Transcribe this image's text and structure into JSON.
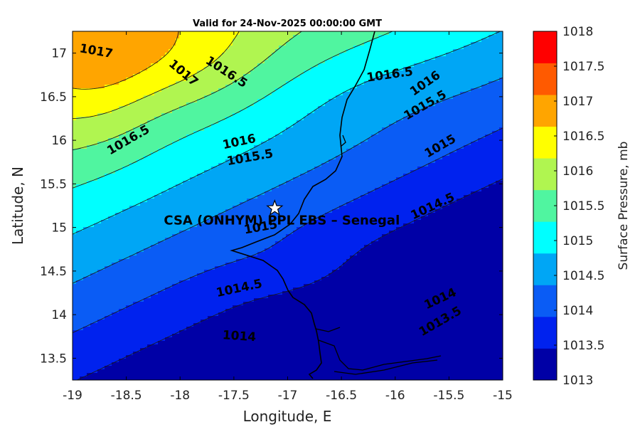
{
  "chart_data": {
    "type": "heatmap",
    "subtype": "filled contour map",
    "title": "Valid for 24-Nov-2025 00:00:00 GMT",
    "xlabel": "Longitude, E",
    "ylabel": "Latitude, N",
    "colorbar_label": "Surface Pressure, mb",
    "xlim": [
      -19,
      -15
    ],
    "ylim": [
      13.25,
      17.25
    ],
    "x_ticks": [
      -19,
      -18.5,
      -18,
      -17.5,
      -17,
      -16.5,
      -16,
      -15.5,
      -15
    ],
    "x_tick_labels": [
      "-19",
      "-18.5",
      "-18",
      "-17.5",
      "-17",
      "-16.5",
      "-16",
      "-15.5",
      "-15"
    ],
    "y_ticks": [
      13.5,
      14,
      14.5,
      15,
      15.5,
      16,
      16.5,
      17
    ],
    "y_tick_labels": [
      "13.5",
      "14",
      "14.5",
      "15",
      "15.5",
      "16",
      "16.5",
      "17"
    ],
    "levels": [
      1013,
      1013.5,
      1014,
      1014.5,
      1015,
      1015.5,
      1016,
      1016.5,
      1017,
      1017.5,
      1018
    ],
    "level_labels": [
      "1013",
      "1013.5",
      "1014",
      "1014.5",
      "1015",
      "1015.5",
      "1016",
      "1016.5",
      "1017",
      "1017.5",
      "1018"
    ],
    "colors": [
      "#0000a6",
      "#0022ee",
      "#0a5cf5",
      "#00a6f5",
      "#00ffff",
      "#50f5a0",
      "#b0f550",
      "#ffff00",
      "#ffa500",
      "#ff5a00",
      "#ff0000"
    ],
    "site": {
      "lon": -17.12,
      "lat": 15.22,
      "label": "CSA (ONHYM) PPL EBS  – Senegal"
    },
    "contour_labels": [
      {
        "text": "1017",
        "lon": -18.78,
        "lat": 17.02,
        "angle": 10
      },
      {
        "text": "1017",
        "lon": -17.97,
        "lat": 16.77,
        "angle": 40
      },
      {
        "text": "1016.5",
        "lon": -17.57,
        "lat": 16.78,
        "angle": 33
      },
      {
        "text": "1016.5",
        "lon": -18.48,
        "lat": 16.0,
        "angle": -30
      },
      {
        "text": "1016.5",
        "lon": -16.05,
        "lat": 16.75,
        "angle": -8
      },
      {
        "text": "1016",
        "lon": -17.45,
        "lat": 15.98,
        "angle": -12
      },
      {
        "text": "1016",
        "lon": -15.72,
        "lat": 16.65,
        "angle": -35
      },
      {
        "text": "1015.5",
        "lon": -17.35,
        "lat": 15.8,
        "angle": -10
      },
      {
        "text": "1015.5",
        "lon": -15.72,
        "lat": 16.4,
        "angle": -30
      },
      {
        "text": "1015",
        "lon": -17.25,
        "lat": 15.0,
        "angle": -10
      },
      {
        "text": "1015",
        "lon": -15.58,
        "lat": 15.93,
        "angle": -30
      },
      {
        "text": "1014.5",
        "lon": -17.45,
        "lat": 14.3,
        "angle": -12
      },
      {
        "text": "1014.5",
        "lon": -15.65,
        "lat": 15.24,
        "angle": -25
      },
      {
        "text": "1014",
        "lon": -17.45,
        "lat": 13.75,
        "angle": 4
      },
      {
        "text": "1014",
        "lon": -15.58,
        "lat": 14.18,
        "angle": -25
      },
      {
        "text": "1013.5",
        "lon": -15.58,
        "lat": 13.92,
        "angle": -30
      }
    ]
  }
}
